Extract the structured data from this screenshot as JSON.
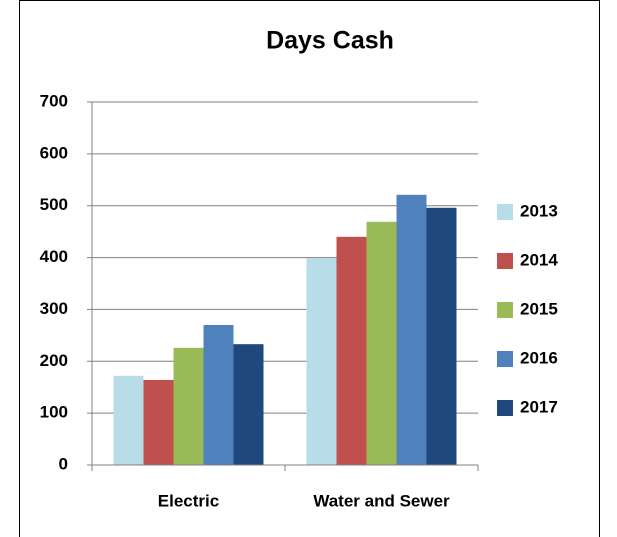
{
  "chart_data": {
    "type": "bar",
    "title": "Days Cash",
    "categories": [
      "Electric",
      "Water and Sewer"
    ],
    "series": [
      {
        "name": "2013",
        "color": "#b7dde8",
        "values": [
          172,
          399
        ]
      },
      {
        "name": "2014",
        "color": "#c0504d",
        "values": [
          164,
          440
        ]
      },
      {
        "name": "2015",
        "color": "#9bbb59",
        "values": [
          226,
          469
        ]
      },
      {
        "name": "2016",
        "color": "#4f81bd",
        "values": [
          270,
          521
        ]
      },
      {
        "name": "2017",
        "color": "#1f497d",
        "values": [
          233,
          496
        ]
      }
    ],
    "ylim": [
      0,
      700
    ],
    "yticks": [
      0,
      100,
      200,
      300,
      400,
      500,
      600,
      700
    ],
    "grid": true,
    "legend": "right"
  }
}
